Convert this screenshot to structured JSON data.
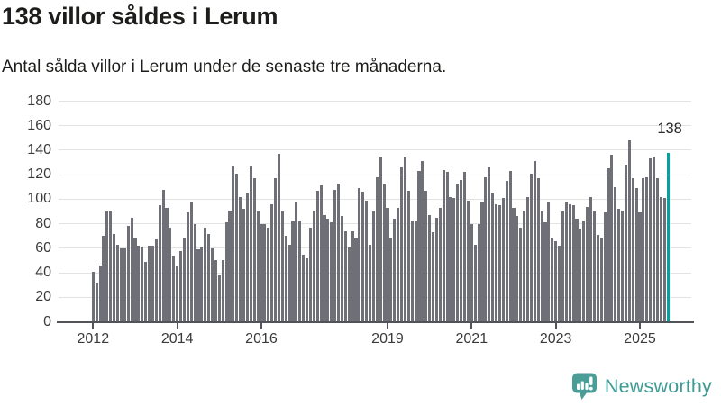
{
  "header": {
    "title": "138 villor såldes i Lerum",
    "subtitle": "Antal sålda villor i Lerum under de senaste tre månaderna."
  },
  "chart_data": {
    "type": "bar",
    "title": "138 villor såldes i Lerum",
    "subtitle": "Antal sålda villor i Lerum under de senaste tre månaderna.",
    "ylabel": "",
    "xlabel": "",
    "ylim": [
      0,
      180
    ],
    "grid": true,
    "y_ticks": [
      0,
      20,
      40,
      60,
      80,
      100,
      120,
      140,
      160,
      180
    ],
    "x_start": "2012-01",
    "x_end": "2025-09",
    "x_tick_labels": [
      {
        "label": "2012",
        "month_index": 0
      },
      {
        "label": "2014",
        "month_index": 24
      },
      {
        "label": "2016",
        "month_index": 48
      },
      {
        "label": "2019",
        "month_index": 84
      },
      {
        "label": "2021",
        "month_index": 108
      },
      {
        "label": "2023",
        "month_index": 132
      },
      {
        "label": "2025",
        "month_index": 156
      }
    ],
    "bar_color": "#6f6f78",
    "values": [
      41,
      32,
      46,
      70,
      90,
      90,
      72,
      63,
      60,
      60,
      78,
      85,
      69,
      62,
      61,
      49,
      62,
      62,
      67,
      95,
      108,
      93,
      77,
      54,
      45,
      58,
      69,
      89,
      98,
      80,
      59,
      61,
      77,
      72,
      60,
      50,
      38,
      50,
      81,
      91,
      127,
      121,
      102,
      92,
      105,
      127,
      117,
      90,
      80,
      80,
      77,
      96,
      117,
      137,
      90,
      70,
      63,
      82,
      98,
      82,
      55,
      52,
      77,
      91,
      107,
      111,
      87,
      84,
      81,
      108,
      113,
      86,
      74,
      61,
      74,
      68,
      109,
      106,
      99,
      63,
      90,
      118,
      134,
      112,
      93,
      69,
      84,
      93,
      126,
      134,
      107,
      82,
      82,
      123,
      131,
      107,
      87,
      73,
      85,
      93,
      124,
      122,
      102,
      101,
      113,
      116,
      122,
      99,
      80,
      63,
      80,
      98,
      118,
      126,
      105,
      96,
      95,
      101,
      115,
      123,
      93,
      86,
      77,
      91,
      102,
      121,
      131,
      117,
      90,
      81,
      98,
      69,
      66,
      62,
      90,
      98,
      96,
      95,
      84,
      76,
      82,
      94,
      102,
      90,
      71,
      69,
      89,
      125,
      136,
      110,
      92,
      91,
      128,
      148,
      117,
      109,
      89,
      117,
      118,
      133,
      135,
      117,
      102,
      101,
      138
    ],
    "highlight": {
      "index": 164,
      "value": 138,
      "label": "138",
      "color": "#00a3a0"
    }
  },
  "footer": {
    "brand": "Newsworthy",
    "brand_color": "#3e9b94",
    "logo_icon": "bar-chart-speech-bubble-icon"
  }
}
